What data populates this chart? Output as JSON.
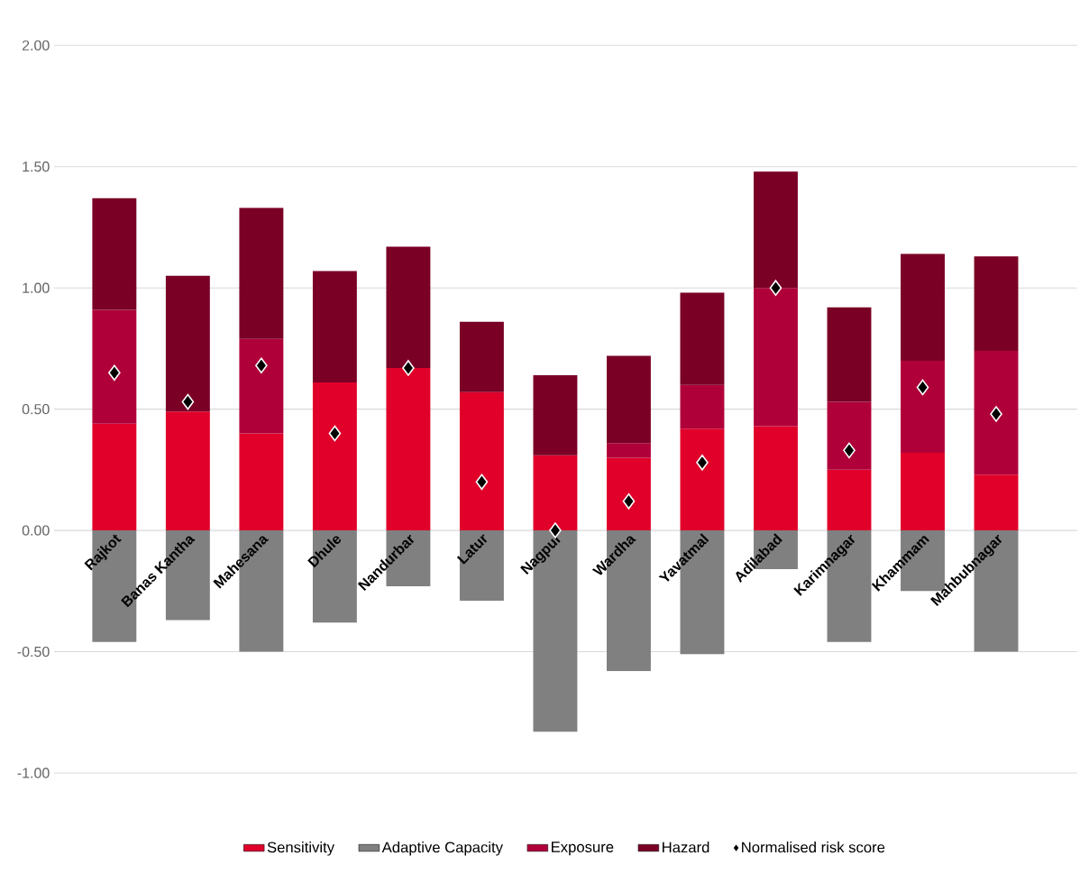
{
  "chart_data": {
    "type": "bar",
    "stacked": true,
    "categories": [
      "Rajkot",
      "Banas Kantha",
      "Mahesana",
      "Dhule",
      "Nandurbar",
      "Latur",
      "Nagpur",
      "Wardha",
      "Yavatmal",
      "Adilabad",
      "Karimnagar",
      "Khammam",
      "Mahbubnagar"
    ],
    "series": [
      {
        "name": "Sensitivity",
        "color": "#e0002a",
        "values": [
          0.44,
          0.49,
          0.4,
          0.61,
          0.67,
          0.57,
          0.31,
          0.3,
          0.42,
          0.43,
          0.25,
          0.32,
          0.23
        ]
      },
      {
        "name": "Adaptive Capacity",
        "color": "#808080",
        "values": [
          -0.46,
          -0.37,
          -0.5,
          -0.38,
          -0.23,
          -0.29,
          -0.83,
          -0.58,
          -0.51,
          -0.16,
          -0.46,
          -0.25,
          -0.5
        ]
      },
      {
        "name": "Exposure",
        "color": "#b0003a",
        "values": [
          0.47,
          0.0,
          0.39,
          0.0,
          0.0,
          0.0,
          0.0,
          0.06,
          0.18,
          0.57,
          0.28,
          0.38,
          0.51
        ]
      },
      {
        "name": "Hazard",
        "color": "#7a0026",
        "values": [
          0.46,
          0.56,
          0.54,
          0.46,
          0.5,
          0.29,
          0.33,
          0.36,
          0.38,
          0.48,
          0.39,
          0.44,
          0.39
        ]
      },
      {
        "name": "Normalised risk score",
        "type": "scatter",
        "marker": "diamond",
        "color": "#000000",
        "values": [
          0.65,
          0.53,
          0.68,
          0.4,
          0.67,
          0.2,
          0.0,
          0.12,
          0.28,
          1.0,
          0.33,
          0.59,
          0.48
        ]
      }
    ],
    "ylim": [
      -1,
      2
    ],
    "yticks": [
      {
        "value": -1,
        "label": "-1.00"
      },
      {
        "value": -0.5,
        "label": "-0.50"
      },
      {
        "value": 0,
        "label": "0.00"
      },
      {
        "value": 0.5,
        "label": "0.50"
      },
      {
        "value": 1,
        "label": "1.00"
      },
      {
        "value": 1.5,
        "label": "1.50"
      },
      {
        "value": 2,
        "label": "2.00"
      }
    ],
    "grid": "y",
    "legend": "bottom"
  }
}
